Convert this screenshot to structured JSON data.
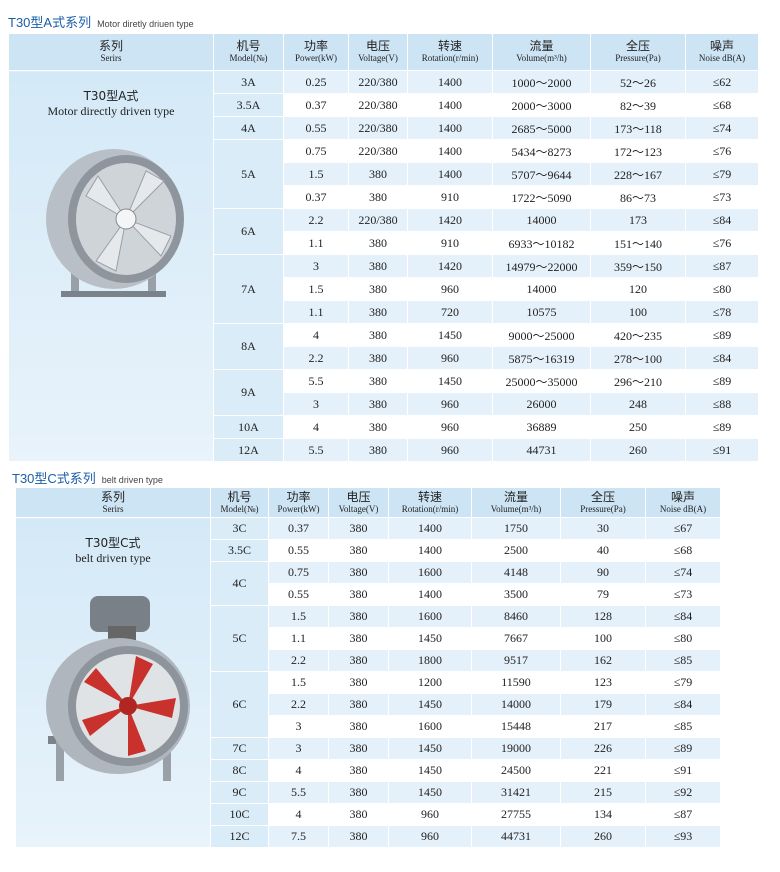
{
  "sections": [
    {
      "title": "T30型A式系列",
      "subtitle": "Motor diretly driuen type",
      "header": [
        {
          "zh": "系列",
          "en": "Serirs"
        },
        {
          "zh": "机号",
          "en": "Model(№)"
        },
        {
          "zh": "功率",
          "en": "Power(kW)"
        },
        {
          "zh": "电压",
          "en": "Voltage(V)"
        },
        {
          "zh": "转速",
          "en": "Rotation(r/min)"
        },
        {
          "zh": "流量",
          "en": "Volume(m³/h)"
        },
        {
          "zh": "全压",
          "en": "Pressure(Pa)"
        },
        {
          "zh": "噪声",
          "en": "Noise dB(A)"
        }
      ],
      "series_label": {
        "zh": "T30型A式",
        "en": "Motor directly driven type"
      },
      "groups": [
        {
          "model": "3A",
          "rows": [
            [
              "0.25",
              "220/380",
              "1400",
              "1000～2000",
              "52～26",
              "≤62"
            ]
          ]
        },
        {
          "model": "3.5A",
          "rows": [
            [
              "0.37",
              "220/380",
              "1400",
              "2000～3000",
              "82～39",
              "≤68"
            ]
          ]
        },
        {
          "model": "4A",
          "rows": [
            [
              "0.55",
              "220/380",
              "1400",
              "2685～5000",
              "173～118",
              "≤74"
            ]
          ]
        },
        {
          "model": "5A",
          "rows": [
            [
              "0.75",
              "220/380",
              "1400",
              "5434～8273",
              "172～123",
              "≤76"
            ],
            [
              "1.5",
              "380",
              "1400",
              "5707～9644",
              "228～167",
              "≤79"
            ],
            [
              "0.37",
              "380",
              "910",
              "1722～5090",
              "86～73",
              "≤73"
            ]
          ]
        },
        {
          "model": "6A",
          "rows": [
            [
              "2.2",
              "220/380",
              "1420",
              "14000",
              "173",
              "≤84"
            ],
            [
              "1.1",
              "380",
              "910",
              "6933～10182",
              "151～140",
              "≤76"
            ]
          ]
        },
        {
          "model": "7A",
          "rows": [
            [
              "3",
              "380",
              "1420",
              "14979～22000",
              "359～150",
              "≤87"
            ],
            [
              "1.5",
              "380",
              "960",
              "14000",
              "120",
              "≤80"
            ],
            [
              "1.1",
              "380",
              "720",
              "10575",
              "100",
              "≤78"
            ]
          ]
        },
        {
          "model": "8A",
          "rows": [
            [
              "4",
              "380",
              "1450",
              "9000～25000",
              "420～235",
              "≤89"
            ],
            [
              "2.2",
              "380",
              "960",
              "5875～16319",
              "278～100",
              "≤84"
            ]
          ]
        },
        {
          "model": "9A",
          "rows": [
            [
              "5.5",
              "380",
              "1450",
              "25000～35000",
              "296～210",
              "≤89"
            ],
            [
              "3",
              "380",
              "960",
              "26000",
              "248",
              "≤88"
            ]
          ]
        },
        {
          "model": "10A",
          "rows": [
            [
              "4",
              "380",
              "960",
              "36889",
              "250",
              "≤89"
            ]
          ]
        },
        {
          "model": "12A",
          "rows": [
            [
              "5.5",
              "380",
              "960",
              "44731",
              "260",
              "≤91"
            ]
          ]
        }
      ]
    },
    {
      "title": "T30型C式系列",
      "subtitle": "belt driven type",
      "header": [
        {
          "zh": "系列",
          "en": "Serirs"
        },
        {
          "zh": "机号",
          "en": "Model(№)"
        },
        {
          "zh": "功率",
          "en": "Power(kW)"
        },
        {
          "zh": "电压",
          "en": "Voltage(V)"
        },
        {
          "zh": "转速",
          "en": "Rotation(r/min)"
        },
        {
          "zh": "流量",
          "en": "Volume(m³/h)"
        },
        {
          "zh": "全压",
          "en": "Pressure(Pa)"
        },
        {
          "zh": "噪声",
          "en": "Noise dB(A)"
        }
      ],
      "series_label": {
        "zh": "T30型C式",
        "en": "belt driven type"
      },
      "groups": [
        {
          "model": "3C",
          "rows": [
            [
              "0.37",
              "380",
              "1400",
              "1750",
              "30",
              "≤67"
            ]
          ]
        },
        {
          "model": "3.5C",
          "rows": [
            [
              "0.55",
              "380",
              "1400",
              "2500",
              "40",
              "≤68"
            ]
          ]
        },
        {
          "model": "4C",
          "rows": [
            [
              "0.75",
              "380",
              "1600",
              "4148",
              "90",
              "≤74"
            ],
            [
              "0.55",
              "380",
              "1400",
              "3500",
              "79",
              "≤73"
            ]
          ]
        },
        {
          "model": "5C",
          "rows": [
            [
              "1.5",
              "380",
              "1600",
              "8460",
              "128",
              "≤84"
            ],
            [
              "1.1",
              "380",
              "1450",
              "7667",
              "100",
              "≤80"
            ],
            [
              "2.2",
              "380",
              "1800",
              "9517",
              "162",
              "≤85"
            ]
          ]
        },
        {
          "model": "6C",
          "rows": [
            [
              "1.5",
              "380",
              "1200",
              "11590",
              "123",
              "≤79"
            ],
            [
              "2.2",
              "380",
              "1450",
              "14000",
              "179",
              "≤84"
            ],
            [
              "3",
              "380",
              "1600",
              "15448",
              "217",
              "≤85"
            ]
          ]
        },
        {
          "model": "7C",
          "rows": [
            [
              "3",
              "380",
              "1450",
              "19000",
              "226",
              "≤89"
            ]
          ]
        },
        {
          "model": "8C",
          "rows": [
            [
              "4",
              "380",
              "1450",
              "24500",
              "221",
              "≤91"
            ]
          ]
        },
        {
          "model": "9C",
          "rows": [
            [
              "5.5",
              "380",
              "1450",
              "31421",
              "215",
              "≤92"
            ]
          ]
        },
        {
          "model": "10C",
          "rows": [
            [
              "4",
              "380",
              "960",
              "27755",
              "134",
              "≤87"
            ]
          ]
        },
        {
          "model": "12C",
          "rows": [
            [
              "7.5",
              "380",
              "960",
              "44731",
              "260",
              "≤93"
            ]
          ]
        }
      ]
    }
  ]
}
